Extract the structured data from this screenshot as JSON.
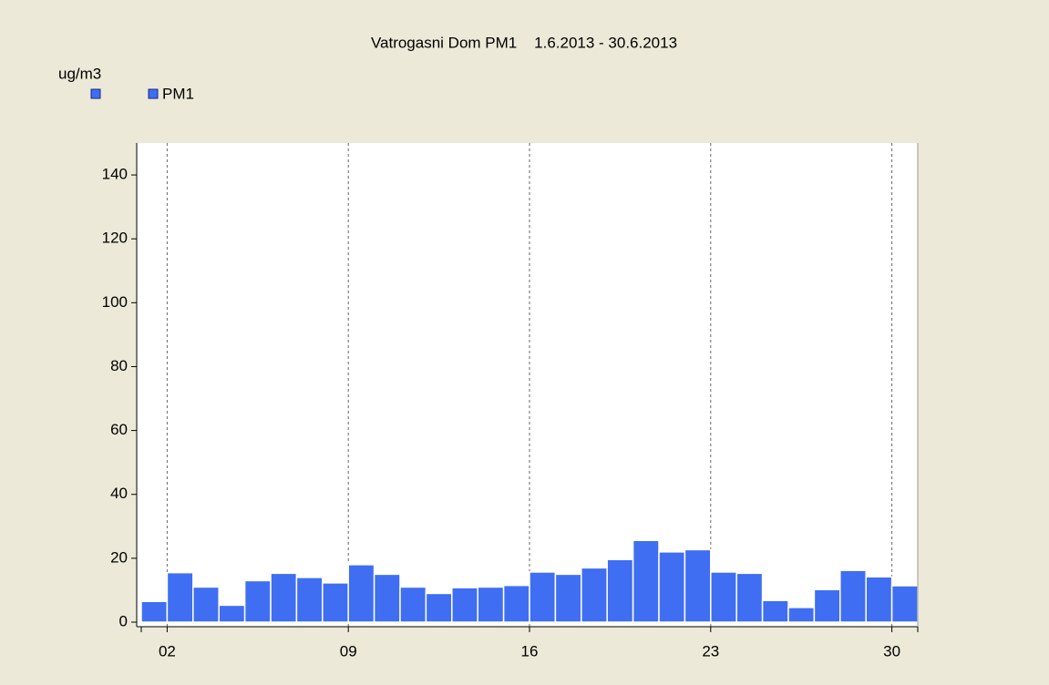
{
  "chart_data": {
    "type": "bar",
    "title": "Vatrogasni Dom PM1    1.6.2013 - 30.6.2013",
    "y_label": "ug/m3",
    "categories": [
      null,
      "02",
      null,
      null,
      null,
      null,
      null,
      null,
      "09",
      null,
      null,
      null,
      null,
      null,
      null,
      "16",
      null,
      null,
      null,
      null,
      null,
      null,
      "23",
      null,
      null,
      null,
      null,
      null,
      null,
      "30"
    ],
    "series": [
      {
        "name": "PM1",
        "color": "#3f6ef2",
        "values": [
          6.5,
          15.5,
          11,
          5.3,
          13,
          15.3,
          14,
          12.3,
          18,
          15,
          11,
          9,
          10.8,
          11,
          11.5,
          15.7,
          15,
          17,
          19.6,
          25.6,
          22,
          22.7,
          15.7,
          15.3,
          6.8,
          4.6,
          10.2,
          16.2,
          14.2,
          11.4
        ]
      }
    ],
    "ylim": [
      0,
      150
    ],
    "yticks": [
      0,
      20,
      40,
      60,
      80,
      100,
      120,
      140
    ],
    "grid": true
  }
}
